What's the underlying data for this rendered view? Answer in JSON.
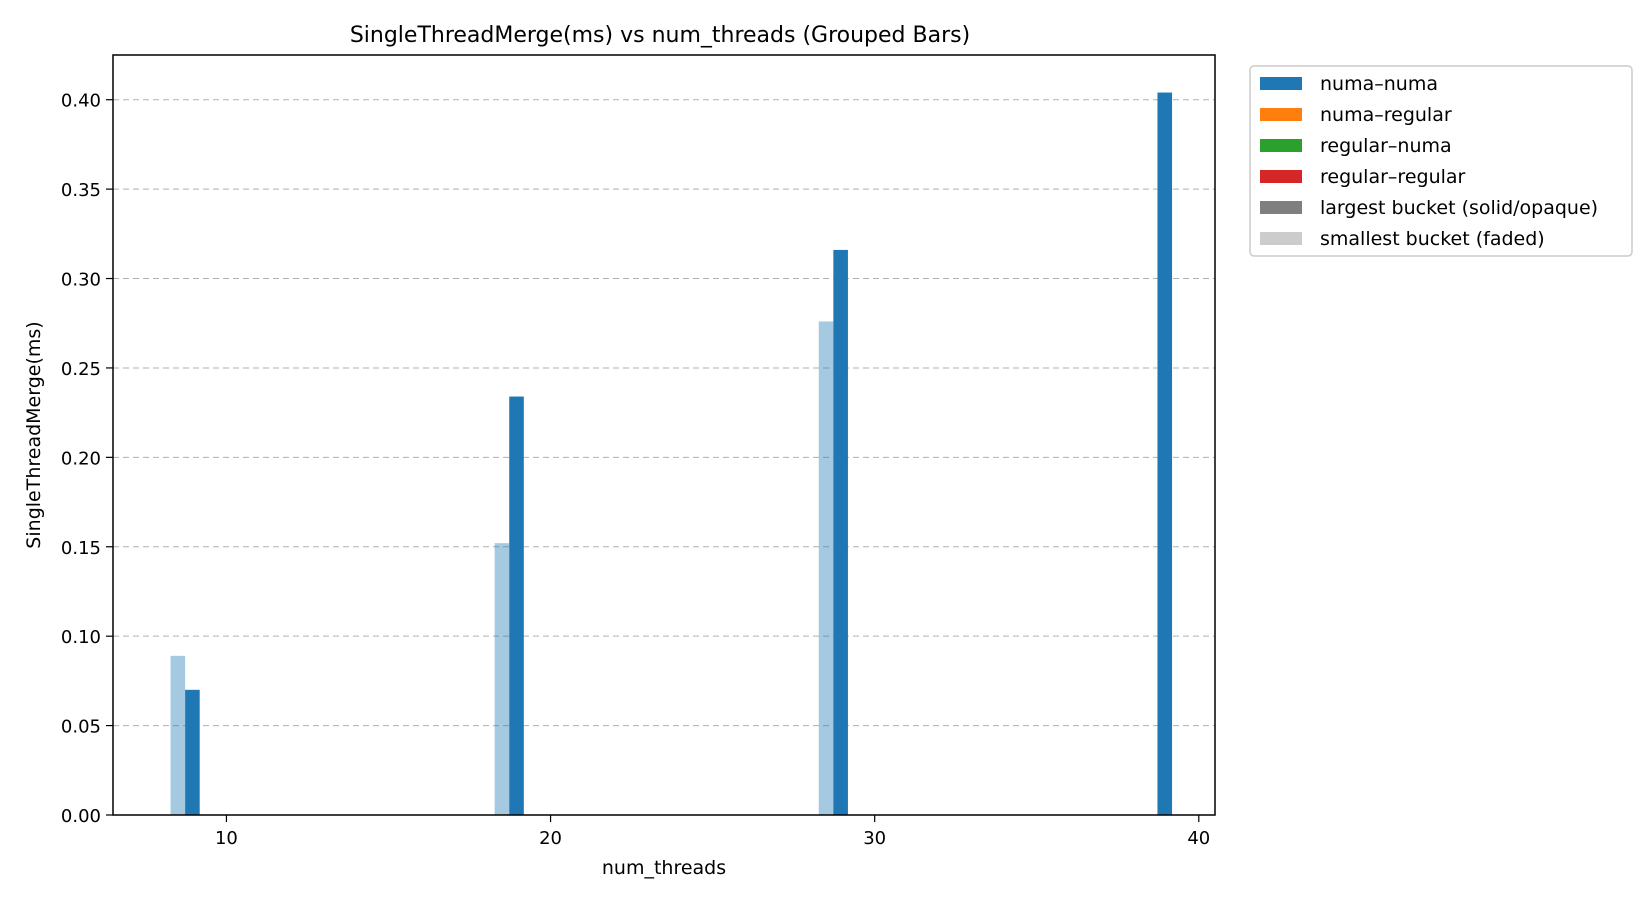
{
  "chart_data": {
    "type": "bar",
    "title": "SingleThreadMerge(ms) vs num_threads (Grouped Bars)",
    "xlabel": "num_threads",
    "ylabel": "SingleThreadMerge(ms)",
    "xlim": [
      6.5,
      40.5
    ],
    "ylim": [
      0,
      0.425
    ],
    "xticks": [
      10,
      20,
      30,
      40
    ],
    "yticks": [
      0.0,
      0.05,
      0.1,
      0.15,
      0.2,
      0.25,
      0.3,
      0.35,
      0.4
    ],
    "ytick_labels": [
      "0.00",
      "0.05",
      "0.10",
      "0.15",
      "0.20",
      "0.25",
      "0.30",
      "0.35",
      "0.40"
    ],
    "grid": "horizontal dashed",
    "legend_position": "outside upper right",
    "series": [
      {
        "name": "numa–numa",
        "bucket": "smallest",
        "color": "#1f77b4",
        "opacity": 0.4,
        "points": [
          {
            "x": 8.5,
            "y": 0.089
          },
          {
            "x": 18.5,
            "y": 0.152
          },
          {
            "x": 28.5,
            "y": 0.276
          }
        ]
      },
      {
        "name": "numa–numa",
        "bucket": "largest",
        "color": "#1f77b4",
        "opacity": 1.0,
        "points": [
          {
            "x": 8.95,
            "y": 0.07
          },
          {
            "x": 18.95,
            "y": 0.234
          },
          {
            "x": 28.95,
            "y": 0.316
          },
          {
            "x": 38.95,
            "y": 0.404
          }
        ]
      }
    ],
    "legend": [
      {
        "label": "numa–numa",
        "color": "#1f77b4"
      },
      {
        "label": "numa–regular",
        "color": "#ff7f0e"
      },
      {
        "label": "regular–numa",
        "color": "#2ca02c"
      },
      {
        "label": "regular–regular",
        "color": "#d62728"
      },
      {
        "label": "largest bucket (solid/opaque)",
        "color": "#7f7f7f"
      },
      {
        "label": "smallest bucket (faded)",
        "color": "#cccccc"
      }
    ]
  }
}
